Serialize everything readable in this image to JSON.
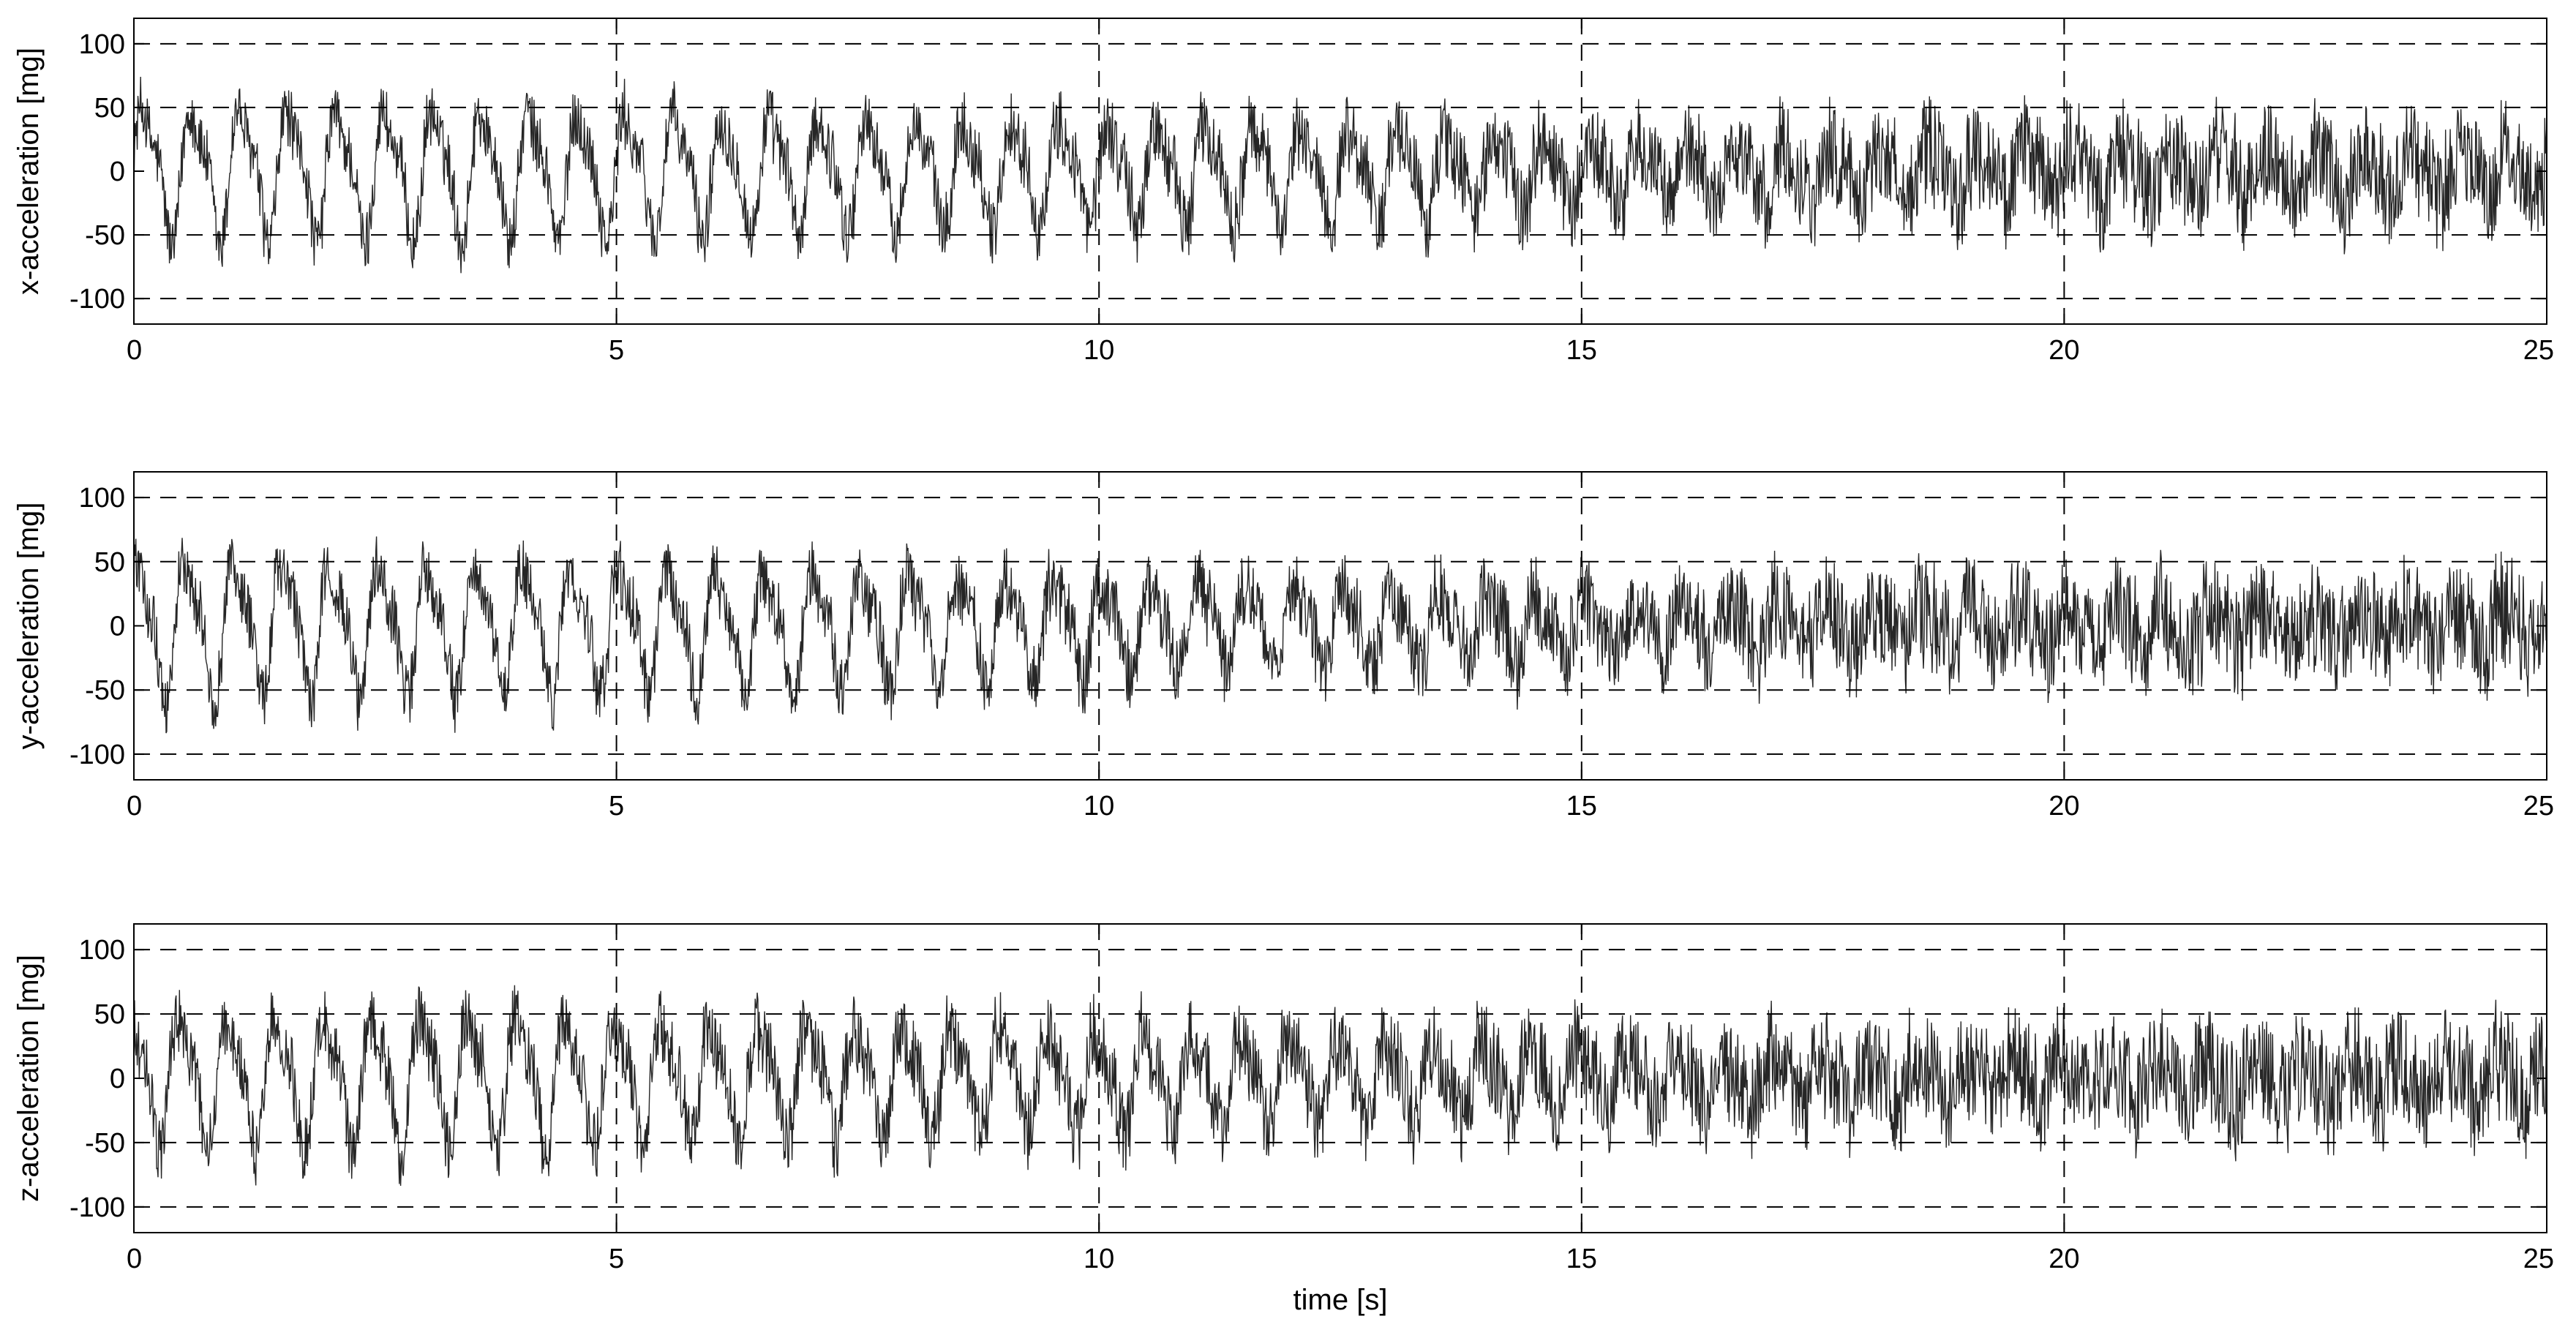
{
  "chart_data": [
    {
      "type": "line",
      "ylabel": "x-acceleration [mg]",
      "xlabel": "",
      "xlim": [
        0,
        25
      ],
      "ylim": [
        -120,
        120
      ],
      "xticks": [
        0,
        5,
        10,
        15,
        20,
        25
      ],
      "yticks": [
        -100,
        -50,
        0,
        50,
        100
      ],
      "grid": "dashed",
      "series_color": "#000000",
      "description": "",
      "envelope": {
        "t": [
          0,
          2,
          4,
          6,
          8,
          10,
          12,
          14,
          16,
          18,
          20,
          22,
          25
        ],
        "amplitude_mg": [
          65,
          62,
          60,
          55,
          52,
          48,
          42,
          35,
          25,
          22,
          22,
          22,
          22
        ],
        "oscillation_period_s": 0.5,
        "noise_mg": [
          15,
          15,
          15,
          16,
          16,
          18,
          18,
          20,
          22,
          24,
          25,
          25,
          25
        ]
      }
    },
    {
      "type": "line",
      "ylabel": "y-acceleration [mg]",
      "xlabel": "",
      "xlim": [
        0,
        25
      ],
      "ylim": [
        -120,
        120
      ],
      "xticks": [
        0,
        5,
        10,
        15,
        20,
        25
      ],
      "yticks": [
        -100,
        -50,
        0,
        50,
        100
      ],
      "grid": "dashed",
      "series_color": "#000000",
      "envelope": {
        "t": [
          0,
          2,
          4,
          6,
          8,
          10,
          12,
          14,
          16,
          18,
          20,
          22,
          25
        ],
        "amplitude_mg": [
          65,
          62,
          60,
          55,
          50,
          45,
          40,
          32,
          22,
          18,
          18,
          18,
          18
        ],
        "oscillation_period_s": 0.5,
        "noise_mg": [
          15,
          15,
          15,
          16,
          16,
          18,
          18,
          20,
          22,
          25,
          25,
          26,
          26
        ]
      }
    },
    {
      "type": "line",
      "ylabel": "z-acceleration [mg]",
      "xlabel": "time [s]",
      "xlim": [
        0,
        25
      ],
      "ylim": [
        -120,
        120
      ],
      "xticks": [
        0,
        5,
        10,
        15,
        20,
        25
      ],
      "yticks": [
        -100,
        -50,
        0,
        50,
        100
      ],
      "grid": "dashed",
      "series_color": "#000000",
      "envelope": {
        "t": [
          0,
          2,
          4,
          6,
          8,
          10,
          12,
          14,
          16,
          18,
          20,
          22,
          25
        ],
        "amplitude_mg": [
          60,
          62,
          60,
          52,
          50,
          45,
          40,
          32,
          22,
          18,
          18,
          18,
          18
        ],
        "oscillation_period_s": 0.5,
        "noise_mg": [
          16,
          16,
          17,
          18,
          18,
          20,
          20,
          22,
          24,
          26,
          26,
          27,
          27
        ]
      }
    }
  ]
}
